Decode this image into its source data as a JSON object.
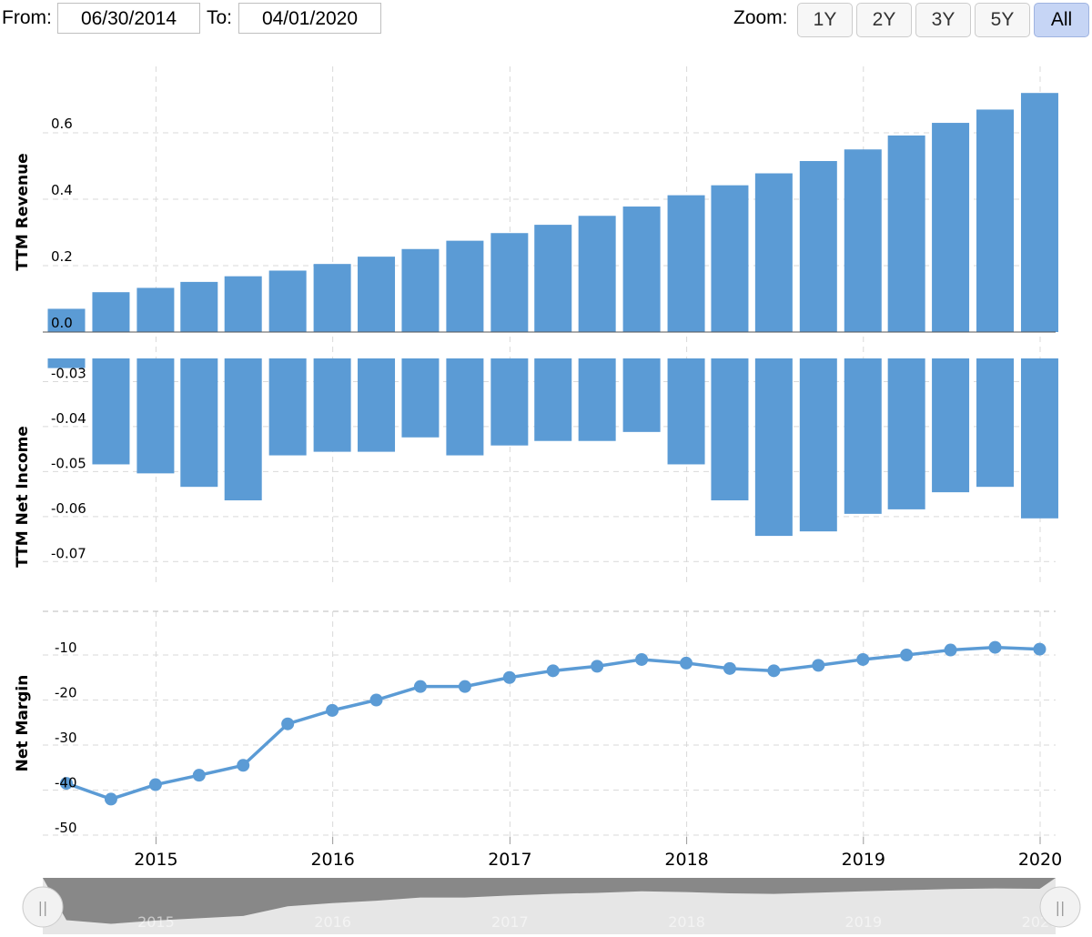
{
  "controls": {
    "from_label": "From:",
    "from_value": "06/30/2014",
    "to_label": "To:",
    "to_value": "04/01/2020",
    "zoom_label": "Zoom:",
    "zoom_buttons": [
      {
        "label": "1Y",
        "active": false
      },
      {
        "label": "2Y",
        "active": false
      },
      {
        "label": "3Y",
        "active": false
      },
      {
        "label": "5Y",
        "active": false
      },
      {
        "label": "All",
        "active": true
      }
    ]
  },
  "navigator": {
    "handle_left_glyph": "||",
    "handle_right_glyph": "||",
    "year_labels": [
      "2015",
      "2016",
      "2017",
      "2018",
      "2019",
      "2020"
    ]
  },
  "colors": {
    "series": "#5b9bd5",
    "grid": "#d9d9d9",
    "navigator_fill": "#888888",
    "navigator_bg": "#e6e6e6",
    "active_zoom": "#c6d5f5"
  },
  "chart_data": [
    {
      "type": "bar",
      "ylabel": "TTM Revenue",
      "x": [
        "2014-06-30",
        "2014-09-30",
        "2014-12-31",
        "2015-03-31",
        "2015-06-30",
        "2015-09-30",
        "2015-12-31",
        "2016-03-31",
        "2016-06-30",
        "2016-09-30",
        "2016-12-31",
        "2017-03-31",
        "2017-06-30",
        "2017-09-30",
        "2017-12-31",
        "2018-03-31",
        "2018-06-30",
        "2018-09-30",
        "2018-12-31",
        "2019-03-31",
        "2019-06-30",
        "2019-09-30",
        "2019-12-31"
      ],
      "values": [
        0.07,
        0.12,
        0.133,
        0.151,
        0.168,
        0.185,
        0.205,
        0.227,
        0.25,
        0.275,
        0.298,
        0.323,
        0.35,
        0.378,
        0.412,
        0.442,
        0.478,
        0.515,
        0.55,
        0.592,
        0.63,
        0.67,
        0.72
      ],
      "ylim": [
        0,
        0.8
      ],
      "yticks": [
        "0.0",
        "0.2",
        "0.4",
        "0.6"
      ],
      "grid": true
    },
    {
      "type": "bar",
      "ylabel": "TTM Net Income",
      "x": [
        "2014-06-30",
        "2014-09-30",
        "2014-12-31",
        "2015-03-31",
        "2015-06-30",
        "2015-09-30",
        "2015-12-31",
        "2016-03-31",
        "2016-06-30",
        "2016-09-30",
        "2016-12-31",
        "2017-03-31",
        "2017-06-30",
        "2017-09-30",
        "2017-12-31",
        "2018-03-31",
        "2018-06-30",
        "2018-09-30",
        "2018-12-31",
        "2019-03-31",
        "2019-06-30",
        "2019-09-30",
        "2019-12-31"
      ],
      "values": [
        -0.027,
        -0.0484,
        -0.0504,
        -0.0534,
        -0.0564,
        -0.0464,
        -0.0456,
        -0.0456,
        -0.0424,
        -0.0464,
        -0.0442,
        -0.0432,
        -0.0432,
        -0.0412,
        -0.0484,
        -0.0564,
        -0.0643,
        -0.0633,
        -0.0594,
        -0.0584,
        -0.0546,
        -0.0534,
        -0.0604
      ],
      "ylim": [
        -0.075,
        -0.02
      ],
      "yticks": [
        "-0.03",
        "-0.04",
        "-0.05",
        "-0.06",
        "-0.07"
      ],
      "grid": true
    },
    {
      "type": "line",
      "ylabel": "Net Margin",
      "x": [
        "2014-06-30",
        "2014-09-30",
        "2014-12-31",
        "2015-03-31",
        "2015-06-30",
        "2015-09-30",
        "2015-12-31",
        "2016-03-31",
        "2016-06-30",
        "2016-09-30",
        "2016-12-31",
        "2017-03-31",
        "2017-06-30",
        "2017-09-30",
        "2017-12-31",
        "2018-03-31",
        "2018-06-30",
        "2018-09-30",
        "2018-12-31",
        "2019-03-31",
        "2019-06-30",
        "2019-09-30",
        "2019-12-31"
      ],
      "values": [
        -38.5,
        -42.0,
        -38.8,
        -36.7,
        -34.5,
        -25.3,
        -22.3,
        -20.0,
        -17.0,
        -17.0,
        -15.0,
        -13.5,
        -12.5,
        -11.0,
        -11.8,
        -13.0,
        -13.5,
        -12.3,
        -11.0,
        -10.0,
        -8.9,
        -8.3,
        -8.7
      ],
      "ylim": [
        -52,
        0
      ],
      "yticks": [
        "-10",
        "-20",
        "-30",
        "-40",
        "-50"
      ],
      "grid": true
    }
  ],
  "x_axis": {
    "tick_labels": [
      "2015",
      "2016",
      "2017",
      "2018",
      "2019",
      "2020"
    ],
    "tick_dates": [
      "2015-01-01",
      "2016-01-01",
      "2017-01-01",
      "2018-01-01",
      "2019-01-01",
      "2020-01-01"
    ]
  }
}
